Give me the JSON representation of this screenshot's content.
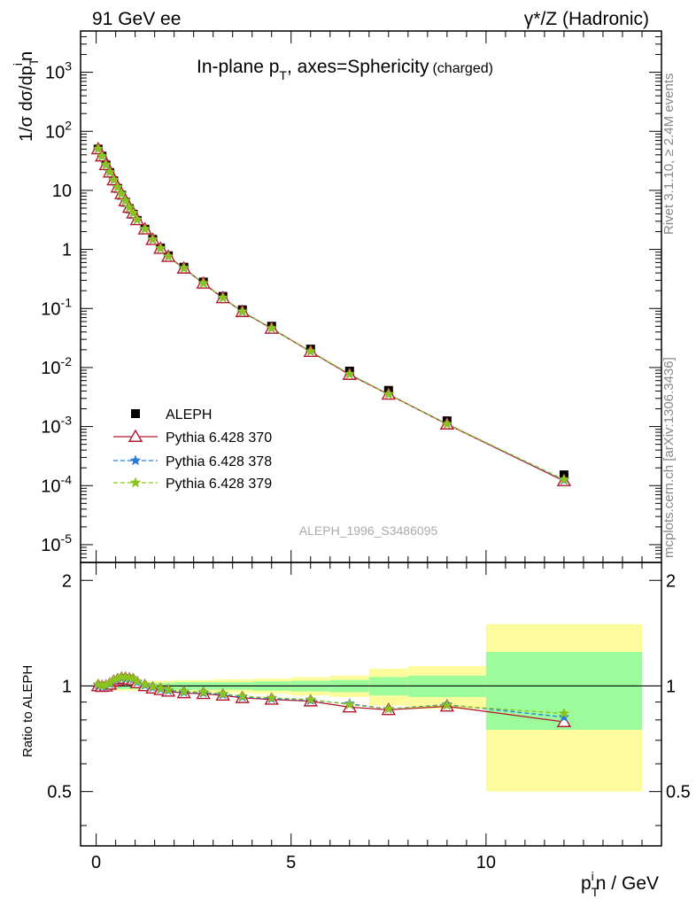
{
  "header": {
    "left": "91 GeV ee",
    "right_prefix": "γ*/Z",
    "right_suffix": "(Hadronic)"
  },
  "sidebar": {
    "rivet": "Rivet 3.1.10, ≥ 2.4M events",
    "mcplots": "mcplots.cern.ch [arXiv:1306.3436]"
  },
  "chart_data": {
    "type": "scatter",
    "title_main": "In-plane p",
    "title_sub": "T",
    "title_rest": ", axes=Sphericity",
    "title_tag": "(charged)",
    "watermark": "ALEPH_1996_S3486095",
    "ylabel": "1/σ dσ/dp",
    "ylabel_sup": "i",
    "ylabel_sub": "T",
    "ylabel_tail": "n",
    "xlabel_main": "p",
    "xlabel_sup": "i",
    "xlabel_sub": "T",
    "xlabel_tail": "n / GeV",
    "ratio_ylabel": "Ratio to ALEPH",
    "xlim": [
      -0.4,
      14.5
    ],
    "ylim_log": [
      5e-06,
      5000
    ],
    "ratio_ylim": [
      0.35,
      2.25
    ],
    "yscale": "log",
    "grid": false,
    "legend_position": "bottom-left",
    "x_ticks": [
      "0",
      "5",
      "10"
    ],
    "ratio_ticks": [
      "0.5",
      "1",
      "2"
    ],
    "x": [
      0.05,
      0.15,
      0.25,
      0.35,
      0.45,
      0.55,
      0.65,
      0.75,
      0.85,
      0.95,
      1.05,
      1.25,
      1.45,
      1.65,
      1.85,
      2.25,
      2.75,
      3.25,
      3.75,
      4.5,
      5.5,
      6.5,
      7.5,
      9.0,
      12.0
    ],
    "data": {
      "name": "ALEPH",
      "color": "#000000",
      "values": [
        50,
        38,
        27,
        20,
        14.5,
        10.8,
        8.3,
        6.3,
        4.9,
        3.95,
        3.1,
        2.2,
        1.48,
        1.06,
        0.78,
        0.5,
        0.28,
        0.16,
        0.095,
        0.05,
        0.0205,
        0.0087,
        0.0041,
        0.00125,
        0.000152
      ]
    },
    "series": [
      {
        "name": "Pythia 6.428 370",
        "color": "#b5182e",
        "style": "solid",
        "marker": "triangle",
        "ratio": [
          1.0,
          0.995,
          0.998,
          1.01,
          1.03,
          1.04,
          1.05,
          1.05,
          1.045,
          1.04,
          1.02,
          1.0,
          0.985,
          0.975,
          0.965,
          0.955,
          0.95,
          0.94,
          0.925,
          0.915,
          0.905,
          0.87,
          0.855,
          0.875,
          0.79
        ]
      },
      {
        "name": "Pythia 6.428 378",
        "color": "#2b7bd6",
        "style": "dashed",
        "marker": "star",
        "ratio": [
          1.005,
          1.0,
          1.003,
          1.015,
          1.035,
          1.045,
          1.055,
          1.055,
          1.05,
          1.045,
          1.025,
          1.005,
          0.99,
          0.98,
          0.97,
          0.96,
          0.955,
          0.945,
          0.93,
          0.92,
          0.91,
          0.89,
          0.86,
          0.885,
          0.815
        ]
      },
      {
        "name": "Pythia 6.428 379",
        "color": "#8bc320",
        "style": "dashed",
        "marker": "star",
        "ratio": [
          1.01,
          1.005,
          1.008,
          1.02,
          1.04,
          1.05,
          1.06,
          1.06,
          1.055,
          1.05,
          1.03,
          1.01,
          0.995,
          0.985,
          0.975,
          0.965,
          0.96,
          0.95,
          0.935,
          0.925,
          0.915,
          0.885,
          0.86,
          0.88,
          0.835
        ]
      }
    ],
    "uncertainty_bands": {
      "edges": [
        0.0,
        0.5,
        1.0,
        1.5,
        2.0,
        3.0,
        4.0,
        5.0,
        6.0,
        7.0,
        8.0,
        10.0,
        14.0
      ],
      "stat_halfwidth": [
        0.02,
        0.02,
        0.02,
        0.02,
        0.025,
        0.025,
        0.03,
        0.035,
        0.04,
        0.06,
        0.07,
        0.25
      ],
      "total_halfwidth": [
        0.03,
        0.03,
        0.03,
        0.035,
        0.04,
        0.045,
        0.05,
        0.06,
        0.07,
        0.12,
        0.14,
        0.5
      ],
      "stat_color": "#9cfc9c",
      "total_color": "#fcfc9c"
    }
  }
}
